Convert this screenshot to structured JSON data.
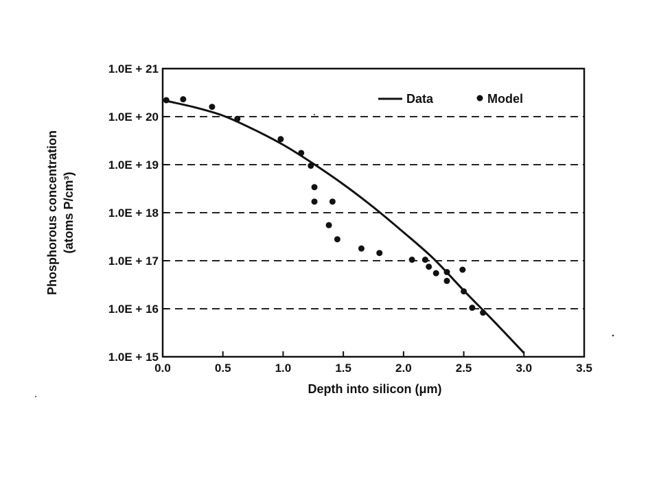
{
  "chart_data": {
    "type": "line",
    "xlabel": "Depth into silicon (μm)",
    "ylabel_line1": "Phosphorous concentration",
    "ylabel_line2": "(atoms P/cm³)",
    "xlim": [
      0.0,
      3.5
    ],
    "ylim_log10": [
      15,
      21
    ],
    "y_scale": "log",
    "grid": "horizontal-dashed",
    "legend_position": "top-right",
    "x_tick_labels": [
      "0.0",
      "0.5",
      "1.0",
      "1.5",
      "2.0",
      "2.5",
      "3.0",
      "3.5"
    ],
    "y_tick_labels": [
      "1.0E + 15",
      "1.0E + 16",
      "1.0E + 17",
      "1.0E + 18",
      "1.0E + 19",
      "1.0E + 20",
      "1.0E + 21"
    ],
    "series": [
      {
        "name": "Data",
        "style": "line",
        "x": [
          0.0,
          0.25,
          0.5,
          0.75,
          1.0,
          1.25,
          1.5,
          1.75,
          2.0,
          2.25,
          2.5,
          2.75,
          3.0
        ],
        "y": [
          2.2e+20,
          1.6e+20,
          1.05e+20,
          5.5e+19,
          2.6e+19,
          1.05e+19,
          3.9e+18,
          1.3e+18,
          3.9e+17,
          1.1e+17,
          2.4e+16,
          5500000000000000.0,
          1200000000000000.0
        ]
      },
      {
        "name": "Model",
        "style": "marker",
        "x": [
          0.03,
          0.17,
          0.41,
          0.62,
          0.98,
          1.15,
          1.23,
          1.26,
          1.26,
          1.38,
          1.41,
          1.45,
          1.65,
          1.8,
          2.07,
          2.18,
          2.21,
          2.27,
          2.36,
          2.36,
          2.49,
          2.5,
          2.57,
          2.66
        ],
        "y": [
          2.2e+20,
          2.3e+20,
          1.6e+20,
          9e+19,
          3.4e+19,
          1.75e+19,
          9.5e+18,
          3.4e+18,
          1.7e+18,
          5.5e+17,
          1.7e+18,
          2.8e+17,
          1.8e+17,
          1.45e+17,
          1.05e+17,
          1.05e+17,
          7.5e+16,
          5.5e+16,
          5.8e+16,
          3.8e+16,
          6.5e+16,
          2.3e+16,
          1.05e+16,
          8300000000000000.0
        ]
      }
    ]
  }
}
